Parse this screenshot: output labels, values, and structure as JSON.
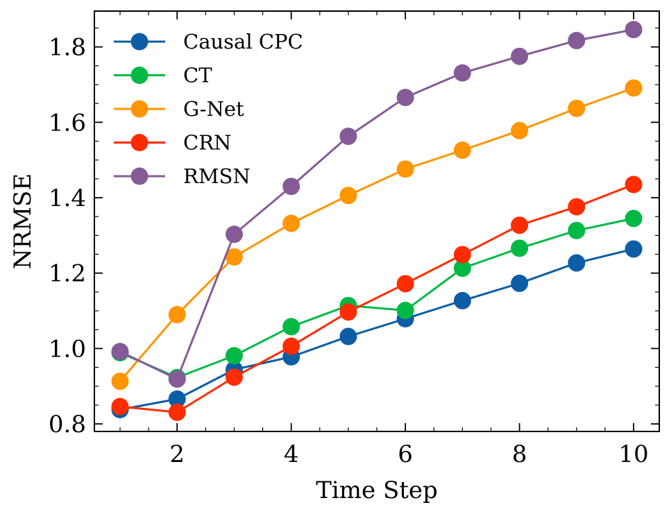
{
  "chart_data": {
    "type": "line",
    "title": "",
    "xlabel": "Time Step",
    "ylabel": "NRMSE",
    "xlim": [
      0.55,
      10.45
    ],
    "ylim": [
      0.78,
      1.895
    ],
    "xticks": [
      2,
      4,
      6,
      8,
      10
    ],
    "yticks": [
      0.8,
      1.0,
      1.2,
      1.4,
      1.6,
      1.8
    ],
    "ytick_labels": [
      "0.8",
      "1.0",
      "1.2",
      "1.4",
      "1.6",
      "1.8"
    ],
    "x_minor_step": 0.5,
    "y_minor_step": 0.05,
    "grid": false,
    "legend_position": "top-left",
    "x": [
      1,
      2,
      3,
      4,
      5,
      6,
      7,
      8,
      9,
      10
    ],
    "series": [
      {
        "name": "Causal CPC",
        "color": "#0C5DA5",
        "values": [
          0.838,
          0.866,
          0.944,
          0.978,
          1.032,
          1.079,
          1.127,
          1.173,
          1.227,
          1.264
        ]
      },
      {
        "name": "CT",
        "color": "#00B945",
        "values": [
          0.989,
          0.923,
          0.981,
          1.058,
          1.114,
          1.101,
          1.213,
          1.266,
          1.313,
          1.345
        ]
      },
      {
        "name": "G-Net",
        "color": "#FF9500",
        "values": [
          0.913,
          1.09,
          1.243,
          1.332,
          1.406,
          1.476,
          1.526,
          1.578,
          1.637,
          1.691
        ]
      },
      {
        "name": "CRN",
        "color": "#FF2C00",
        "values": [
          0.846,
          0.831,
          0.924,
          1.006,
          1.097,
          1.172,
          1.249,
          1.327,
          1.376,
          1.435
        ]
      },
      {
        "name": "RMSN",
        "color": "#845B97",
        "values": [
          0.992,
          0.919,
          1.303,
          1.43,
          1.563,
          1.666,
          1.731,
          1.775,
          1.817,
          1.846
        ]
      }
    ]
  }
}
